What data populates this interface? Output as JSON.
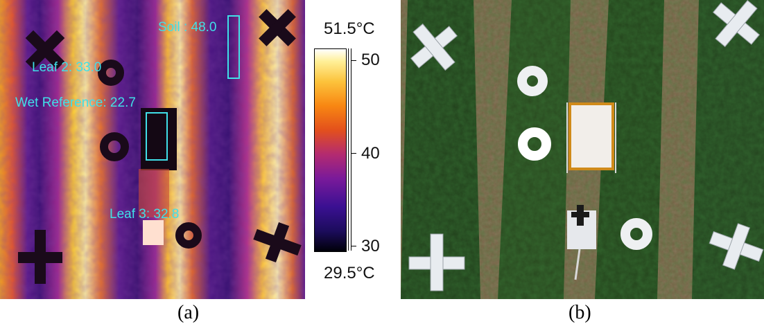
{
  "panel_a": {
    "caption": "(a)",
    "labels": {
      "soil": "Soil : 48.0",
      "leaf2": "Leaf 2: 33.0",
      "wet_reference": "Wet Reference: 22.7",
      "leaf3": "Leaf 3: 32.8"
    },
    "colorbar": {
      "max_label": "51.5°C",
      "min_label": "29.5°C",
      "ticks": [
        "50",
        "40",
        "30"
      ]
    }
  },
  "panel_b": {
    "caption": "(b)"
  }
}
